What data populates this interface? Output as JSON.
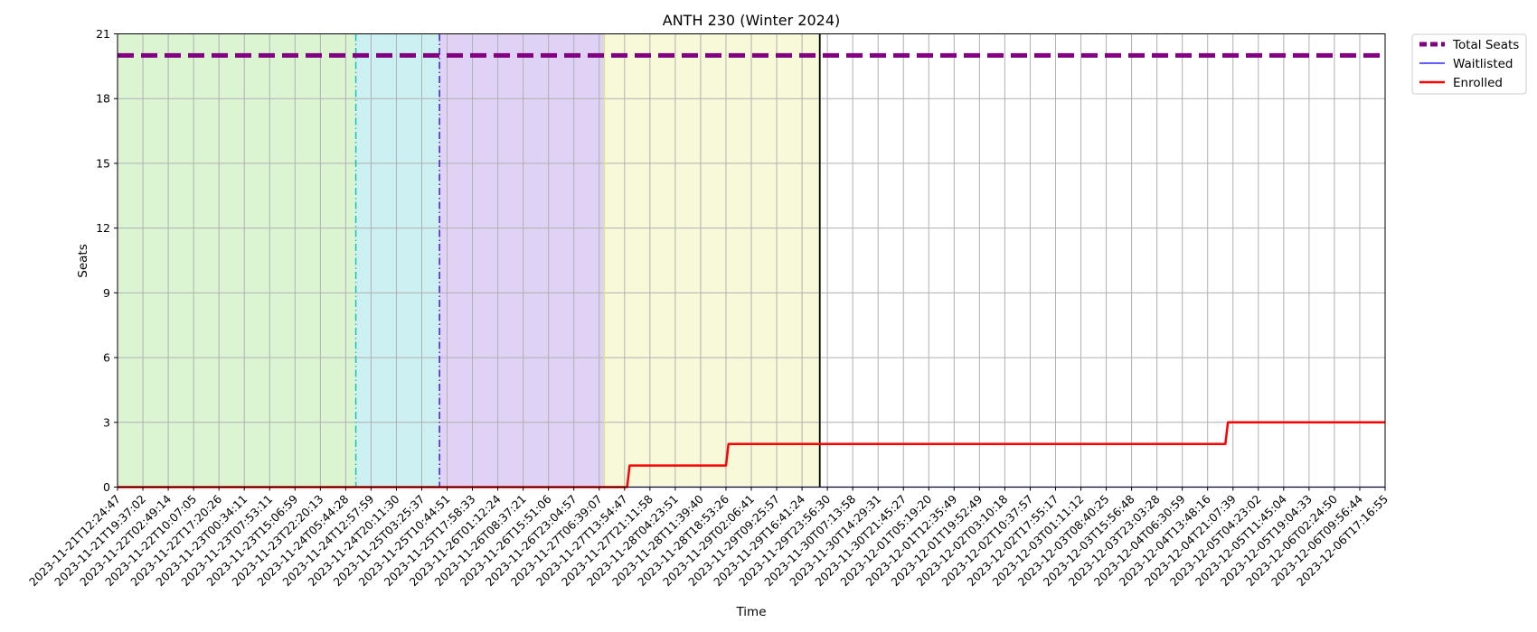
{
  "chart_data": {
    "type": "line",
    "title": "ANTH 230 (Winter 2024)",
    "xlabel": "Time",
    "ylabel": "Seats",
    "ylim": [
      0,
      21
    ],
    "yticks": [
      0,
      3,
      6,
      9,
      12,
      15,
      18,
      21
    ],
    "grid": true,
    "legend_position": "outside-top-right",
    "x_ticks": [
      "2023-11-21T12:24:47",
      "2023-11-21T19:37:02",
      "2023-11-22T02:49:14",
      "2023-11-22T10:07:05",
      "2023-11-22T17:20:26",
      "2023-11-23T00:34:11",
      "2023-11-23T07:53:11",
      "2023-11-23T15:06:59",
      "2023-11-23T22:20:13",
      "2023-11-24T05:44:28",
      "2023-11-24T12:57:59",
      "2023-11-24T20:11:30",
      "2023-11-25T03:25:37",
      "2023-11-25T10:44:51",
      "2023-11-25T17:58:33",
      "2023-11-26T01:12:24",
      "2023-11-26T08:37:21",
      "2023-11-26T15:51:06",
      "2023-11-26T23:04:57",
      "2023-11-27T06:39:07",
      "2023-11-27T13:54:47",
      "2023-11-27T21:11:58",
      "2023-11-28T04:23:51",
      "2023-11-28T11:39:40",
      "2023-11-28T18:53:26",
      "2023-11-29T02:06:41",
      "2023-11-29T09:25:57",
      "2023-11-29T16:41:24",
      "2023-11-29T23:56:30",
      "2023-11-30T07:13:58",
      "2023-11-30T14:29:31",
      "2023-11-30T21:45:27",
      "2023-12-01T05:19:20",
      "2023-12-01T12:35:49",
      "2023-12-01T19:52:49",
      "2023-12-02T03:10:18",
      "2023-12-02T10:37:57",
      "2023-12-02T17:55:17",
      "2023-12-03T01:11:12",
      "2023-12-03T08:40:25",
      "2023-12-03T15:56:48",
      "2023-12-03T23:03:28",
      "2023-12-04T06:30:59",
      "2023-12-04T13:48:16",
      "2023-12-04T21:07:39",
      "2023-12-05T04:23:02",
      "2023-12-05T11:45:04",
      "2023-12-05T19:04:33",
      "2023-12-06T02:24:50",
      "2023-12-06T09:56:44",
      "2023-12-06T17:16:55"
    ],
    "bands": [
      {
        "from_tick": 0,
        "to_tick": 9.4,
        "color": "#dbf5d3"
      },
      {
        "from_tick": 9.4,
        "to_tick": 12.7,
        "color": "#cdf1f2"
      },
      {
        "from_tick": 12.7,
        "to_tick": 19.2,
        "color": "#e0d2f5"
      },
      {
        "from_tick": 19.2,
        "to_tick": 27.7,
        "color": "#f8f9d8"
      }
    ],
    "vlines": [
      {
        "at_tick": 9.4,
        "color": "#17c3b2",
        "style": "dashdot"
      },
      {
        "at_tick": 12.7,
        "color": "#3f1bd6",
        "style": "dashdot"
      },
      {
        "at_tick": 19.2,
        "color": "#e5e08a",
        "style": "solid"
      },
      {
        "at_tick": 27.7,
        "color": "#000000",
        "style": "solid"
      }
    ],
    "series": [
      {
        "name": "Total Seats",
        "color": "#800080",
        "style": "dashed",
        "points": [
          [
            0,
            20
          ],
          [
            50,
            20
          ]
        ]
      },
      {
        "name": "Waitlisted",
        "color": "#0000ff",
        "style": "solid-thin",
        "points": [
          [
            0,
            0
          ],
          [
            50,
            0
          ]
        ]
      },
      {
        "name": "Enrolled",
        "color": "#ff0000",
        "style": "solid",
        "points": [
          [
            0,
            0
          ],
          [
            20.1,
            0
          ],
          [
            20.2,
            1
          ],
          [
            24.0,
            1
          ],
          [
            24.1,
            2
          ],
          [
            43.7,
            2
          ],
          [
            43.8,
            3
          ],
          [
            50,
            3
          ]
        ]
      }
    ]
  }
}
